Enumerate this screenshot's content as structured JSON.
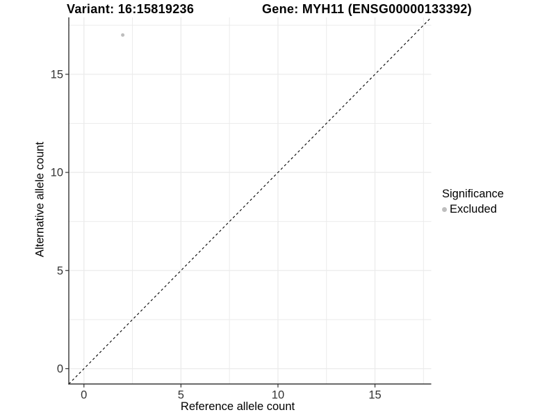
{
  "figure": {
    "title_left": "Variant: 16:15819236",
    "title_right": "Gene: MYH11 (ENSG00000133392)"
  },
  "chart_data": {
    "type": "scatter",
    "title": "Variant: 16:15819236    Gene: MYH11 (ENSG00000133392)",
    "xlabel": "Reference allele count",
    "ylabel": "Alternative allele count",
    "xlim": [
      -0.78,
      17.9
    ],
    "ylim": [
      -0.78,
      17.9
    ],
    "x_ticks": [
      0,
      5,
      10,
      15
    ],
    "y_ticks": [
      0,
      5,
      10,
      15
    ],
    "x_minor_ticks": [
      2.5,
      7.5,
      12.5,
      17.5
    ],
    "y_minor_ticks": [
      2.5,
      7.5,
      12.5,
      17.5
    ],
    "grid": true,
    "points": [
      {
        "x": 2,
        "y": 17,
        "series": "Excluded"
      }
    ],
    "reference_line": {
      "kind": "identity",
      "style": "dashed"
    },
    "legend": {
      "title": "Significance",
      "position": "right",
      "items": [
        {
          "label": "Excluded",
          "color": "#bebebe"
        }
      ]
    },
    "colors": {
      "point": "#bebebe",
      "grid": "#ebebeb",
      "axis": "#333333",
      "tick_label": "#333333",
      "reference_line": "#000000"
    }
  }
}
